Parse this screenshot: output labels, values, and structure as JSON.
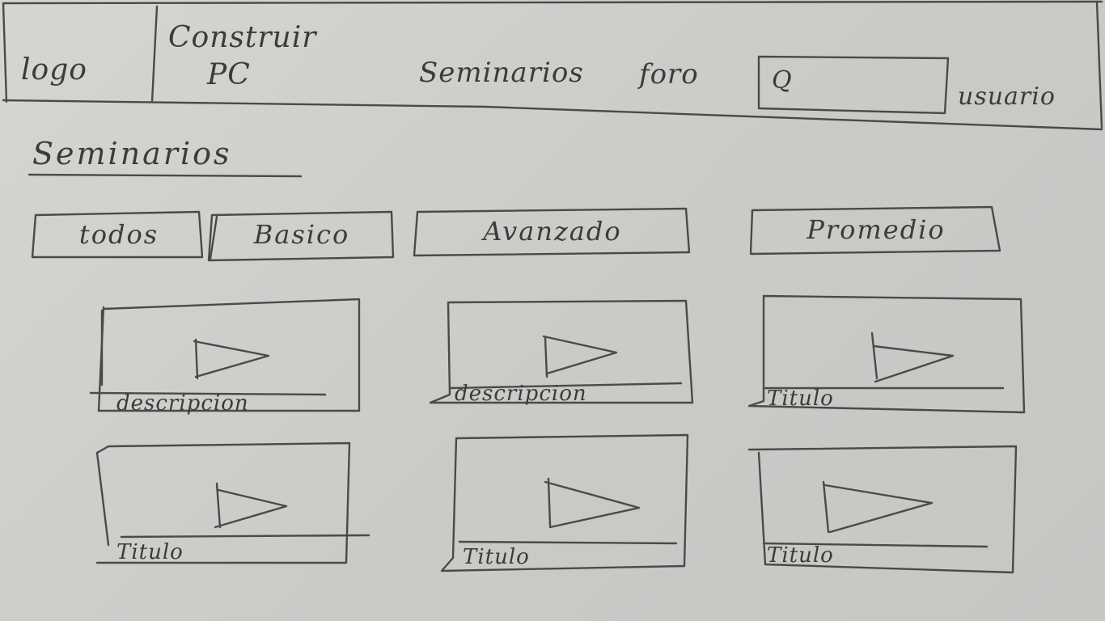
{
  "header": {
    "logo": "logo",
    "nav": {
      "build_pc_line1": "Construir",
      "build_pc_line2": "PC",
      "seminars": "Seminarios",
      "forum": "foro"
    },
    "search": {
      "icon": "search-icon",
      "glyph": "Q"
    },
    "user": "usuario"
  },
  "page": {
    "title": "Seminarios"
  },
  "filters": [
    {
      "label": "todos"
    },
    {
      "label": "Basico"
    },
    {
      "label": "Avanzado"
    },
    {
      "label": "Promedio"
    }
  ],
  "videos": [
    {
      "caption": "descripcion",
      "icon": "play-icon"
    },
    {
      "caption": "descripcion",
      "icon": "play-icon"
    },
    {
      "caption": "Titulo",
      "icon": "play-icon"
    },
    {
      "caption": "Titulo",
      "icon": "play-icon"
    },
    {
      "caption": "Titulo",
      "icon": "play-icon"
    },
    {
      "caption": "Titulo",
      "icon": "play-icon"
    }
  ],
  "colors": {
    "paper": "#d3d2cf",
    "pencil": "#3b3b3b"
  }
}
